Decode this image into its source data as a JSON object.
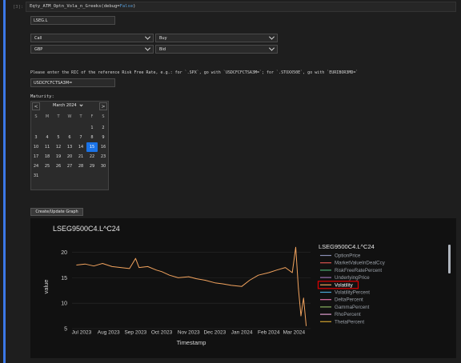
{
  "cell": {
    "prompt": "[3]:",
    "code_fn": "Eqty_ATM_Optn_Vola_n_Greeks(debug=",
    "code_kw": "False",
    "code_end": ")"
  },
  "ric_input": {
    "value": "LSEG.L"
  },
  "dropdowns": {
    "option_type": "Call",
    "side": "Buy",
    "currency": "GBP",
    "price_side": "Bid"
  },
  "rfr_prompt": "Please enter the RIC of the reference Risk Free Rate, e.g.: for `.SPX`, go with `USDCFCFCTSA3M=`; for `.STOXX50E`, go with `EURIBOR3MD=`",
  "rfr_input": {
    "value": "USDCFCFCTSA3M="
  },
  "maturity": {
    "label": "Maturity:",
    "month_label": "March 2024",
    "prev": "<",
    "next": ">",
    "dow": [
      "S",
      "M",
      "T",
      "W",
      "T",
      "F",
      "S"
    ],
    "weeks": [
      [
        "",
        "",
        "",
        "",
        "",
        "1",
        "2"
      ],
      [
        "3",
        "4",
        "5",
        "6",
        "7",
        "8",
        "9"
      ],
      [
        "10",
        "11",
        "12",
        "13",
        "14",
        "15",
        "16"
      ],
      [
        "17",
        "18",
        "19",
        "20",
        "21",
        "22",
        "23"
      ],
      [
        "24",
        "25",
        "26",
        "27",
        "28",
        "29",
        "30"
      ],
      [
        "31",
        "",
        "",
        "",
        "",
        "",
        ""
      ]
    ],
    "selected": "15"
  },
  "graph_button": {
    "label": "Create/Update Graph"
  },
  "colors": {
    "accent": "#1a73e8",
    "cell_bar": "#3b78e7",
    "series": "#f2a35e",
    "highlight": "#e00000"
  },
  "chart_data": {
    "type": "line",
    "title": "LSEG9500C4.L^C24",
    "xlabel": "Timestamp",
    "ylabel": "value",
    "x_ticks": [
      "Jul 2023",
      "Aug 2023",
      "Sep 2023",
      "Oct 2023",
      "Nov 2023",
      "Dec 2023",
      "Jan 2024",
      "Feb 2024",
      "Mar 2024"
    ],
    "y_ticks": [
      5,
      10,
      15,
      20
    ],
    "ylim": [
      5,
      21.5
    ],
    "legend_title": "LSEG9500C4.L^C24",
    "legend_placement": "right",
    "legend": [
      {
        "name": "OptionPrice",
        "color": "#8a8fb4"
      },
      {
        "name": "MarketValueInDealCcy",
        "color": "#d9534f"
      },
      {
        "name": "RiskFreeRatePercent",
        "color": "#4caf75"
      },
      {
        "name": "UnderlyingPrice",
        "color": "#9a6fb0"
      },
      {
        "name": "Volatility",
        "color": "#f2a35e",
        "highlighted": true
      },
      {
        "name": "VolatilityPercent",
        "color": "#4aa8d8"
      },
      {
        "name": "DeltaPercent",
        "color": "#e070a8"
      },
      {
        "name": "GammaPercent",
        "color": "#8ab060"
      },
      {
        "name": "RhoPercent",
        "color": "#e0a0d0"
      },
      {
        "name": "ThetaPercent",
        "color": "#d0a030"
      }
    ],
    "series": [
      {
        "name": "Volatility",
        "x": [
          "2023-06-25",
          "2023-07-05",
          "2023-07-15",
          "2023-07-25",
          "2023-08-05",
          "2023-08-15",
          "2023-08-25",
          "2023-09-01",
          "2023-09-05",
          "2023-09-15",
          "2023-09-25",
          "2023-10-01",
          "2023-10-10",
          "2023-10-20",
          "2023-11-01",
          "2023-11-10",
          "2023-11-20",
          "2023-12-01",
          "2023-12-10",
          "2023-12-20",
          "2024-01-01",
          "2024-01-10",
          "2024-01-20",
          "2024-02-01",
          "2024-02-10",
          "2024-02-20",
          "2024-02-28",
          "2024-03-03",
          "2024-03-06",
          "2024-03-09",
          "2024-03-12",
          "2024-03-15"
        ],
        "y": [
          17.5,
          17.7,
          17.3,
          17.8,
          17.2,
          17.0,
          16.8,
          18.8,
          17.0,
          17.2,
          16.5,
          16.2,
          15.5,
          15.0,
          15.2,
          14.8,
          14.5,
          14.0,
          13.8,
          13.5,
          13.3,
          14.5,
          15.5,
          16.0,
          16.5,
          17.0,
          16.0,
          21.0,
          13.0,
          7.5,
          11.0,
          5.5
        ]
      }
    ]
  }
}
